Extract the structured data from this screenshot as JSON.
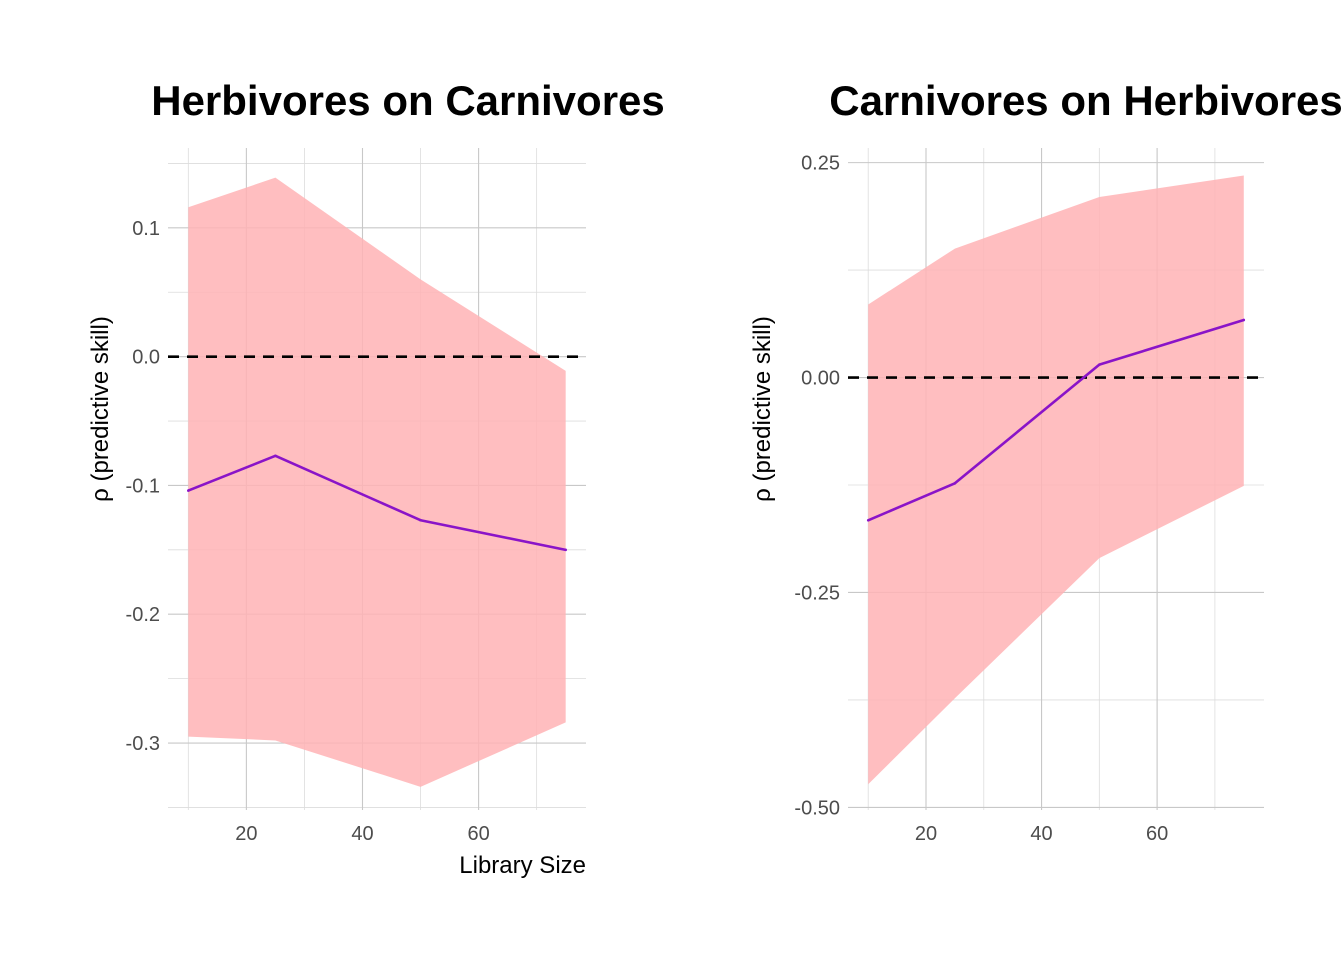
{
  "chart_data": [
    {
      "type": "line",
      "title": "Herbivores on Carnivores",
      "xlabel": "Library Size",
      "ylabel": "ρ (predictive skill)",
      "x": [
        10,
        25,
        50,
        75
      ],
      "xlim": [
        6.5,
        78.5
      ],
      "ylim": [
        -0.352,
        0.162
      ],
      "x_ticks": [
        20,
        40,
        60
      ],
      "x_tick_labels": [
        "20",
        "40",
        "60"
      ],
      "y_ticks": [
        0.1,
        0.0,
        -0.1,
        -0.2,
        -0.3
      ],
      "y_tick_labels": [
        "0.1",
        "0.0",
        "-0.1",
        "-0.2",
        "-0.3"
      ],
      "series": [
        {
          "values": [
            -0.104,
            -0.077,
            -0.127,
            -0.15
          ]
        }
      ],
      "band": {
        "lower": [
          -0.295,
          -0.298,
          -0.334,
          -0.284
        ],
        "upper": [
          0.116,
          0.139,
          0.06,
          -0.011
        ]
      },
      "reference_line": 0,
      "grid": true,
      "colors": {
        "line": "#8a14c8",
        "band": "#ffb3b5",
        "reference": "#000000"
      }
    },
    {
      "type": "line",
      "title": "Carnivores on Herbivores",
      "xlabel": "",
      "ylabel": "ρ (predictive skill)",
      "x": [
        10,
        25,
        50,
        75
      ],
      "xlim": [
        6.5,
        78.5
      ],
      "ylim": [
        -0.503,
        0.267
      ],
      "x_ticks": [
        20,
        40,
        60
      ],
      "x_tick_labels": [
        "20",
        "40",
        "60"
      ],
      "y_ticks": [
        0.25,
        0.0,
        -0.25,
        -0.5
      ],
      "y_tick_labels": [
        "0.25",
        "0.00",
        "-0.25",
        "-0.50"
      ],
      "series": [
        {
          "values": [
            -0.166,
            -0.123,
            0.015,
            0.067
          ]
        }
      ],
      "band": {
        "lower": [
          -0.473,
          -0.373,
          -0.21,
          -0.126
        ],
        "upper": [
          0.085,
          0.15,
          0.21,
          0.235
        ]
      },
      "reference_line": 0,
      "grid": true,
      "colors": {
        "line": "#8a14c8",
        "band": "#ffb3b5",
        "reference": "#000000"
      }
    }
  ]
}
